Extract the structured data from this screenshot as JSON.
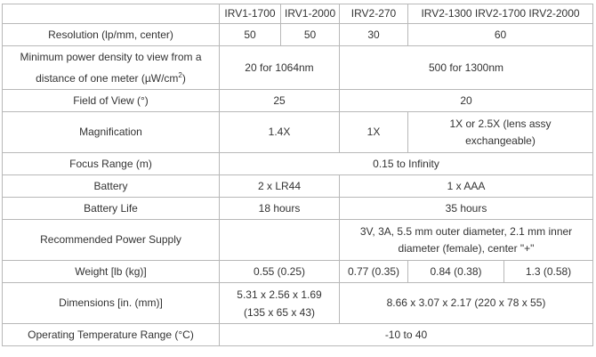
{
  "headers": [
    "",
    "IRV1-1700",
    "IRV1-2000",
    "IRV2-270",
    "IRV2-1300 IRV2-1700 IRV2-2000"
  ],
  "rows": {
    "resolution": {
      "label": "Resolution (lp/mm, center)",
      "irv1_1700": "50",
      "irv1_2000": "50",
      "irv2_270": "30",
      "irv2_rest": "60"
    },
    "power_density": {
      "label_a": "Minimum power density to view from a",
      "label_b": "distance of one meter (µW/cm",
      "label_sup": "2",
      "label_c": ")",
      "irv1": "20 for 1064nm",
      "irv2": "500 for 1300nm"
    },
    "field_of_view": {
      "label": "Field of View (°)",
      "irv1": "25",
      "irv2": "20"
    },
    "magnification": {
      "label": "Magnification",
      "irv1": "1.4X",
      "irv2_270": "1X",
      "irv2_rest": "1X or 2.5X (lens assy exchangeable)"
    },
    "focus_range": {
      "label": "Focus Range (m)",
      "value": "0.15 to Infinity"
    },
    "battery": {
      "label": "Battery",
      "irv1": "2 x LR44",
      "irv2": "1 x AAA"
    },
    "battery_life": {
      "label": "Battery Life",
      "irv1": "18 hours",
      "irv2": "35 hours"
    },
    "power_supply": {
      "label": "Recommended Power Supply",
      "irv1": "",
      "irv2": "3V, 3A, 5.5 mm outer diameter, 2.1 mm inner diameter (female), center \"+\""
    },
    "weight": {
      "label": "Weight [lb (kg)]",
      "irv1": "0.55 (0.25)",
      "irv2_270": "0.77 (0.35)",
      "irv2_1300": "0.84 (0.38)",
      "irv2_rest": "1.3 (0.58)"
    },
    "dimensions": {
      "label": "Dimensions [in. (mm)]",
      "irv1": "5.31 x 2.56 x 1.69 (135 x 65 x 43)",
      "irv2": "8.66 x 3.07 x 2.17 (220 x 78 x 55)"
    },
    "temperature": {
      "label": "Operating Temperature Range (°C)",
      "value": "-10 to 40"
    }
  }
}
